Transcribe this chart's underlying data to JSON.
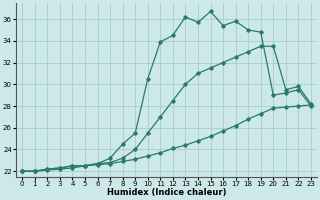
{
  "xlabel": "Humidex (Indice chaleur)",
  "background_color": "#cce8e8",
  "grid_color": "#aacccc",
  "line_color": "#2a7a6a",
  "xlim": [
    -0.5,
    23.5
  ],
  "ylim": [
    21.5,
    37.5
  ],
  "yticks": [
    22,
    24,
    26,
    28,
    30,
    32,
    34,
    36
  ],
  "xticks": [
    0,
    1,
    2,
    3,
    4,
    5,
    6,
    7,
    8,
    9,
    10,
    11,
    12,
    13,
    14,
    15,
    16,
    17,
    18,
    19,
    20,
    21,
    22,
    23
  ],
  "line1_x": [
    0,
    1,
    2,
    3,
    4,
    5,
    6,
    7,
    8,
    9,
    10,
    11,
    12,
    13,
    14,
    15,
    16,
    17,
    18,
    19,
    20,
    21,
    22,
    23
  ],
  "line1_y": [
    22,
    22,
    22.2,
    22.3,
    22.5,
    22.5,
    22.7,
    23.2,
    24.5,
    25.5,
    30.5,
    33.9,
    34.5,
    36.2,
    35.7,
    36.7,
    35.4,
    35.8,
    35.0,
    34.8,
    29.0,
    29.2,
    29.5,
    28.0
  ],
  "line2_x": [
    0,
    1,
    2,
    3,
    4,
    5,
    6,
    7,
    8,
    9,
    10,
    11,
    12,
    13,
    14,
    15,
    16,
    17,
    18,
    19,
    20,
    21,
    22,
    23
  ],
  "line2_y": [
    22,
    22,
    22.2,
    22.3,
    22.5,
    22.5,
    22.7,
    22.8,
    23.2,
    24.0,
    25.5,
    27.0,
    28.5,
    30.0,
    31.0,
    31.5,
    32.0,
    32.5,
    33.0,
    33.5,
    33.5,
    29.5,
    29.8,
    28.2
  ],
  "line3_x": [
    0,
    1,
    2,
    3,
    4,
    5,
    6,
    7,
    8,
    9,
    10,
    11,
    12,
    13,
    14,
    15,
    16,
    17,
    18,
    19,
    20,
    21,
    22,
    23
  ],
  "line3_y": [
    22,
    22,
    22.1,
    22.2,
    22.3,
    22.5,
    22.6,
    22.7,
    22.9,
    23.1,
    23.4,
    23.7,
    24.1,
    24.4,
    24.8,
    25.2,
    25.7,
    26.2,
    26.8,
    27.3,
    27.8,
    27.9,
    28.0,
    28.1
  ]
}
